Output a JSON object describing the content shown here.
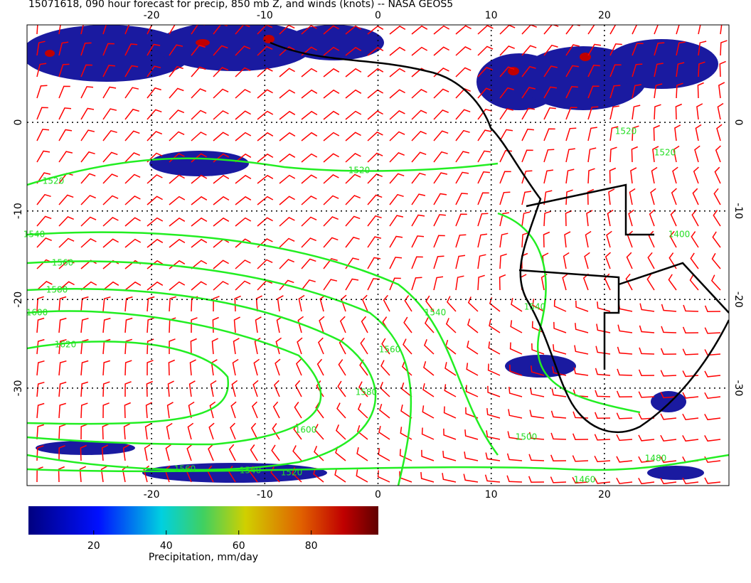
{
  "title": "15071618, 090 hour forecast for precip, 850 mb Z, and winds (knots) -- NASA GEOS5",
  "map": {
    "xlim": [
      -31,
      31
    ],
    "ylim": [
      -41,
      11
    ],
    "xticks": [
      -20,
      -10,
      0,
      10,
      20
    ],
    "yticks": [
      0,
      -10,
      -20,
      -30
    ],
    "grid": true,
    "contour_labels": [
      1520,
      1520,
      1520,
      1520,
      1540,
      1560,
      1580,
      1600,
      1620,
      1540,
      1560,
      1580,
      1600,
      1560,
      1540,
      1520,
      1500,
      1480,
      1460,
      1540,
      1400
    ]
  },
  "colorbar": {
    "label": "Precipitation, mm/day",
    "lim": [
      2,
      98.5
    ],
    "ticks": [
      20,
      40,
      60,
      80
    ]
  }
}
